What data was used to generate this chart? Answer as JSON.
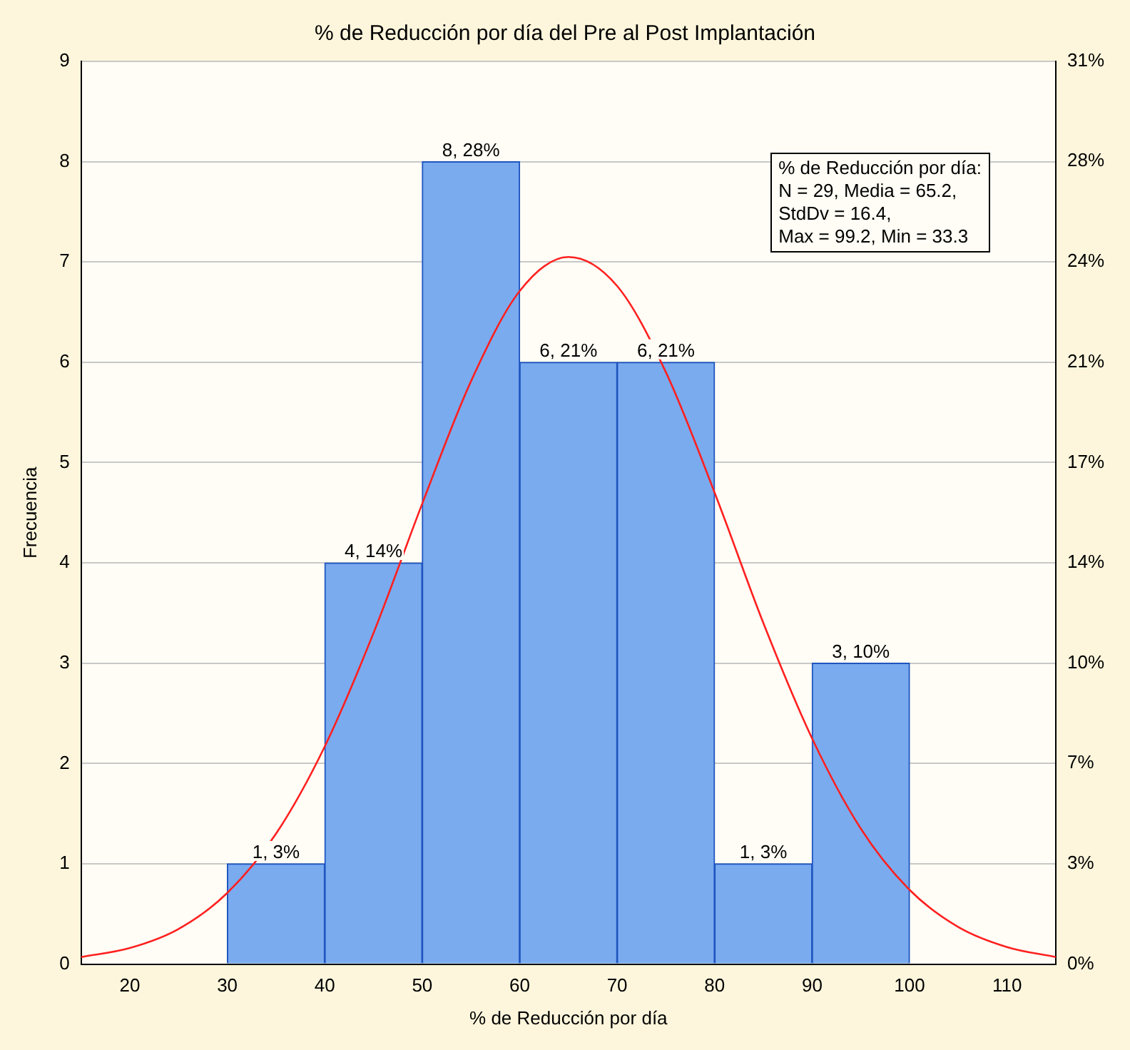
{
  "chart_data": {
    "type": "histogram",
    "title": "% de Reducción por día del Pre al Post Implantación",
    "xlabel": "% de Reducción por día",
    "ylabel": "Frecuencia",
    "bins": [
      30,
      40,
      50,
      60,
      70,
      80,
      90,
      100
    ],
    "values": [
      1,
      4,
      8,
      6,
      6,
      1,
      3
    ],
    "color": "#7aabef",
    "value_labels": [
      "1, 3%",
      "4, 14%",
      "8, 28%",
      "6, 21%",
      "6, 21%",
      "1, 3%",
      "3, 10%"
    ],
    "series": [
      {
        "type": "line",
        "color": "#ff2020",
        "x": [
          15,
          20,
          25,
          30,
          35,
          40,
          45,
          50,
          55,
          60,
          65,
          70,
          75,
          80,
          85,
          90,
          95,
          100,
          105,
          110,
          115
        ],
        "values": [
          0.07,
          0.16,
          0.35,
          0.71,
          1.3,
          2.17,
          3.3,
          4.59,
          5.81,
          6.71,
          7.05,
          6.76,
          5.9,
          4.7,
          3.4,
          2.25,
          1.35,
          0.74,
          0.37,
          0.17,
          0.07
        ]
      }
    ],
    "xlim": [
      15,
      115
    ],
    "xticks": [
      20,
      30,
      40,
      50,
      60,
      70,
      80,
      90,
      100,
      110
    ],
    "ylim": [
      0,
      9
    ],
    "yticks": [
      0,
      1,
      2,
      3,
      4,
      5,
      6,
      7,
      8,
      9
    ],
    "y2lim": [
      0,
      31.03
    ],
    "y2ticks": [
      {
        "value": 0,
        "label": "0%"
      },
      {
        "value": 3.45,
        "label": "3%"
      },
      {
        "value": 6.9,
        "label": "7%"
      },
      {
        "value": 10.34,
        "label": "10%"
      },
      {
        "value": 13.79,
        "label": "14%"
      },
      {
        "value": 17.24,
        "label": "17%"
      },
      {
        "value": 20.69,
        "label": "21%"
      },
      {
        "value": 24.14,
        "label": "24%"
      },
      {
        "value": 27.59,
        "label": "28%"
      },
      {
        "value": 31.03,
        "label": "31%"
      }
    ],
    "annotations": [
      "% de Reducción por día:",
      "N = 29, Media = 65.2,",
      "StdDv = 16.4,",
      "Max = 99.2, Min = 33.3"
    ],
    "grid": "y",
    "legend": false
  }
}
